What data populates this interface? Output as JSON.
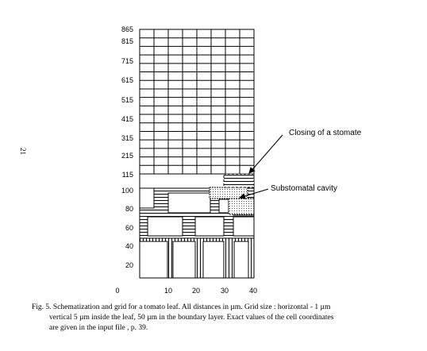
{
  "figure": {
    "y_tick_labels": [
      "865",
      "815",
      "715",
      "615",
      "515",
      "415",
      "315",
      "215",
      "115",
      "100",
      "80",
      "60",
      "40",
      "20"
    ],
    "x_tick_labels": [
      "0",
      "10",
      "20",
      "30",
      "40"
    ],
    "annotations": {
      "closing": "Closing of a stomate",
      "cavity": "Substomatal cavity"
    },
    "side_mark": "21",
    "caption": {
      "line1": "Fig. 5. Schematization and grid for a tomato leaf. All distances in µm. Grid size : horizontal - 1 µm",
      "line2": "vertical 5 µm inside the leaf, 50 µm in the boundary layer. Exact values of the cell coordinates",
      "line3": "are given in the input file , p. 39."
    },
    "colors": {
      "ink": "#000000",
      "paper": "#ffffff",
      "dots": "#555555"
    }
  }
}
